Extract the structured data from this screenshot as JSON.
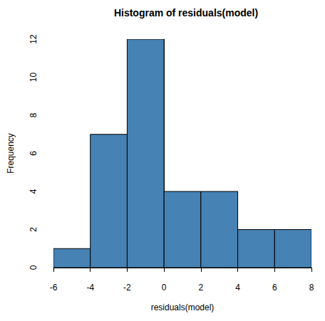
{
  "chart_data": {
    "type": "histogram",
    "title": "Histogram of residuals(model)",
    "x_label": "residuals(model)",
    "y_label": "Frequency",
    "bins": [
      -6,
      -4,
      -2,
      0,
      2,
      4,
      6,
      8
    ],
    "counts": [
      1,
      7,
      12,
      4,
      4,
      2,
      2
    ],
    "color": "#4682b4",
    "xlim": [
      -6,
      8
    ],
    "xticks": [
      -6,
      -4,
      -2,
      0,
      2,
      4,
      6,
      8
    ],
    "ylim": [
      0,
      12
    ],
    "yticks": [
      0,
      2,
      4,
      6,
      8,
      10,
      12
    ],
    "grid": false
  }
}
